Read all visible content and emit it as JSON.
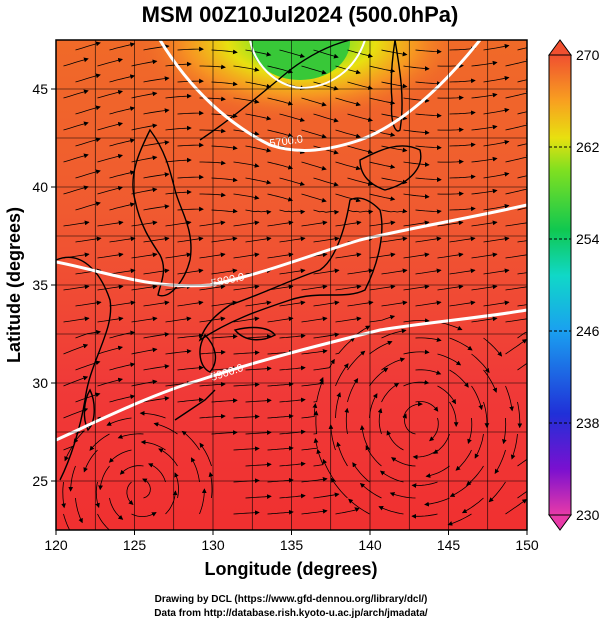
{
  "title": "MSM 00Z10Jul2024 (500.0hPa)",
  "map": {
    "xlabel": "Longitude (degrees)",
    "ylabel": "Latitude  (degrees)",
    "lon_range": [
      120,
      150
    ],
    "lat_range": [
      22.5,
      47.5
    ],
    "x_ticks": [
      "120",
      "125",
      "130",
      "135",
      "140",
      "145",
      "150"
    ],
    "y_ticks": [
      "25",
      "30",
      "35",
      "40",
      "45"
    ],
    "grid": true,
    "field": "temperature (K)",
    "field_description": "shaded temperature, streamlines of wind, white geopotential height contours"
  },
  "contours": [
    {
      "label": "5700.0",
      "color": "#ffffff"
    },
    {
      "label": "5800.0",
      "color": "#ffffff"
    },
    {
      "label": "5900.0",
      "color": "#ffffff"
    }
  ],
  "colorbar": {
    "ticks": [
      "270",
      "262",
      "254",
      "246",
      "238",
      "230"
    ],
    "min": 230,
    "max": 270,
    "colors": [
      "#e83aa8",
      "#7a10d0",
      "#2030d8",
      "#1aa0f0",
      "#10d8c8",
      "#10c850",
      "#80e020",
      "#e8e010",
      "#f8a020",
      "#f05030"
    ]
  },
  "credits": {
    "line1": "Drawing by DCL (https://www.gfd-dennou.org/library/dcl/)",
    "line2": "Data from http://database.rish.kyoto-u.ac.jp/arch/jmadata/"
  }
}
